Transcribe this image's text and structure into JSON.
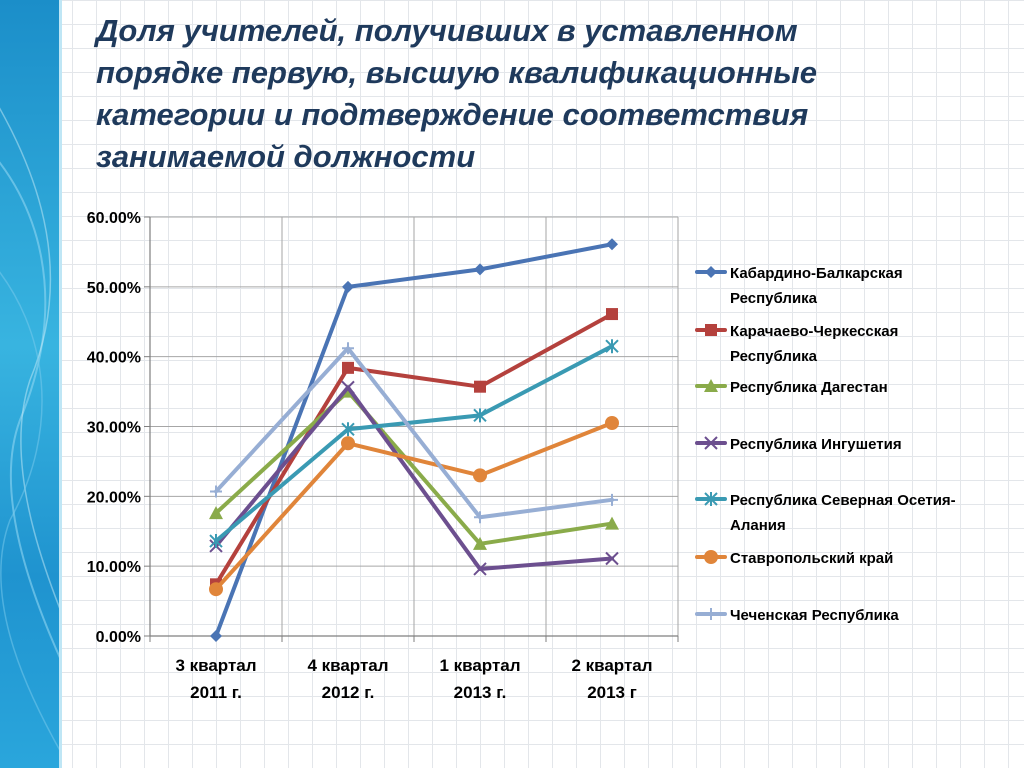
{
  "slide": {
    "title": "Доля учителей, получивших в уставленном порядке первую, высшую квалификационные категории и подтверждение соответствия занимаемой должности"
  },
  "chart_data": {
    "type": "line",
    "categories": [
      [
        "3 квартал",
        "2011 г."
      ],
      [
        "4 квартал",
        "2012 г."
      ],
      [
        "1 квартал",
        "2013 г."
      ],
      [
        "2 квартал",
        "2013 г"
      ]
    ],
    "y_ticks": [
      "0.00%",
      "10.00%",
      "20.00%",
      "30.00%",
      "40.00%",
      "50.00%",
      "60.00%"
    ],
    "ylim": [
      0,
      60
    ],
    "grid": true,
    "legend_position": "right",
    "series": [
      {
        "name": [
          "Кабардино-Балкарская",
          "Республика"
        ],
        "color": "#4a74b4",
        "marker": "diamond",
        "values": [
          0.0,
          50.0,
          52.5,
          56.1
        ]
      },
      {
        "name": [
          "Карачаево-Черкесская",
          "Республика"
        ],
        "color": "#b4413d",
        "marker": "square",
        "values": [
          7.4,
          38.4,
          35.7,
          46.1
        ]
      },
      {
        "name": [
          "Республика Дагестан"
        ],
        "color": "#8aab4a",
        "marker": "triangle",
        "values": [
          17.6,
          35.0,
          13.2,
          16.1
        ]
      },
      {
        "name": [
          "Республика Ингушетия"
        ],
        "color": "#6c4f8f",
        "marker": "x",
        "values": [
          12.9,
          35.6,
          9.6,
          11.1
        ]
      },
      {
        "name": [
          "Республика Северная Осетия-",
          "Алания"
        ],
        "color": "#3a9ab3",
        "marker": "star",
        "values": [
          13.6,
          29.6,
          31.6,
          41.5
        ]
      },
      {
        "name": [
          "Ставропольский край"
        ],
        "color": "#e0853a",
        "marker": "circle",
        "values": [
          6.7,
          27.6,
          23.0,
          30.5
        ]
      },
      {
        "name": [
          "Чеченская Республика"
        ],
        "color": "#97aed4",
        "marker": "plus",
        "values": [
          20.7,
          41.2,
          17.0,
          19.5
        ]
      }
    ]
  }
}
